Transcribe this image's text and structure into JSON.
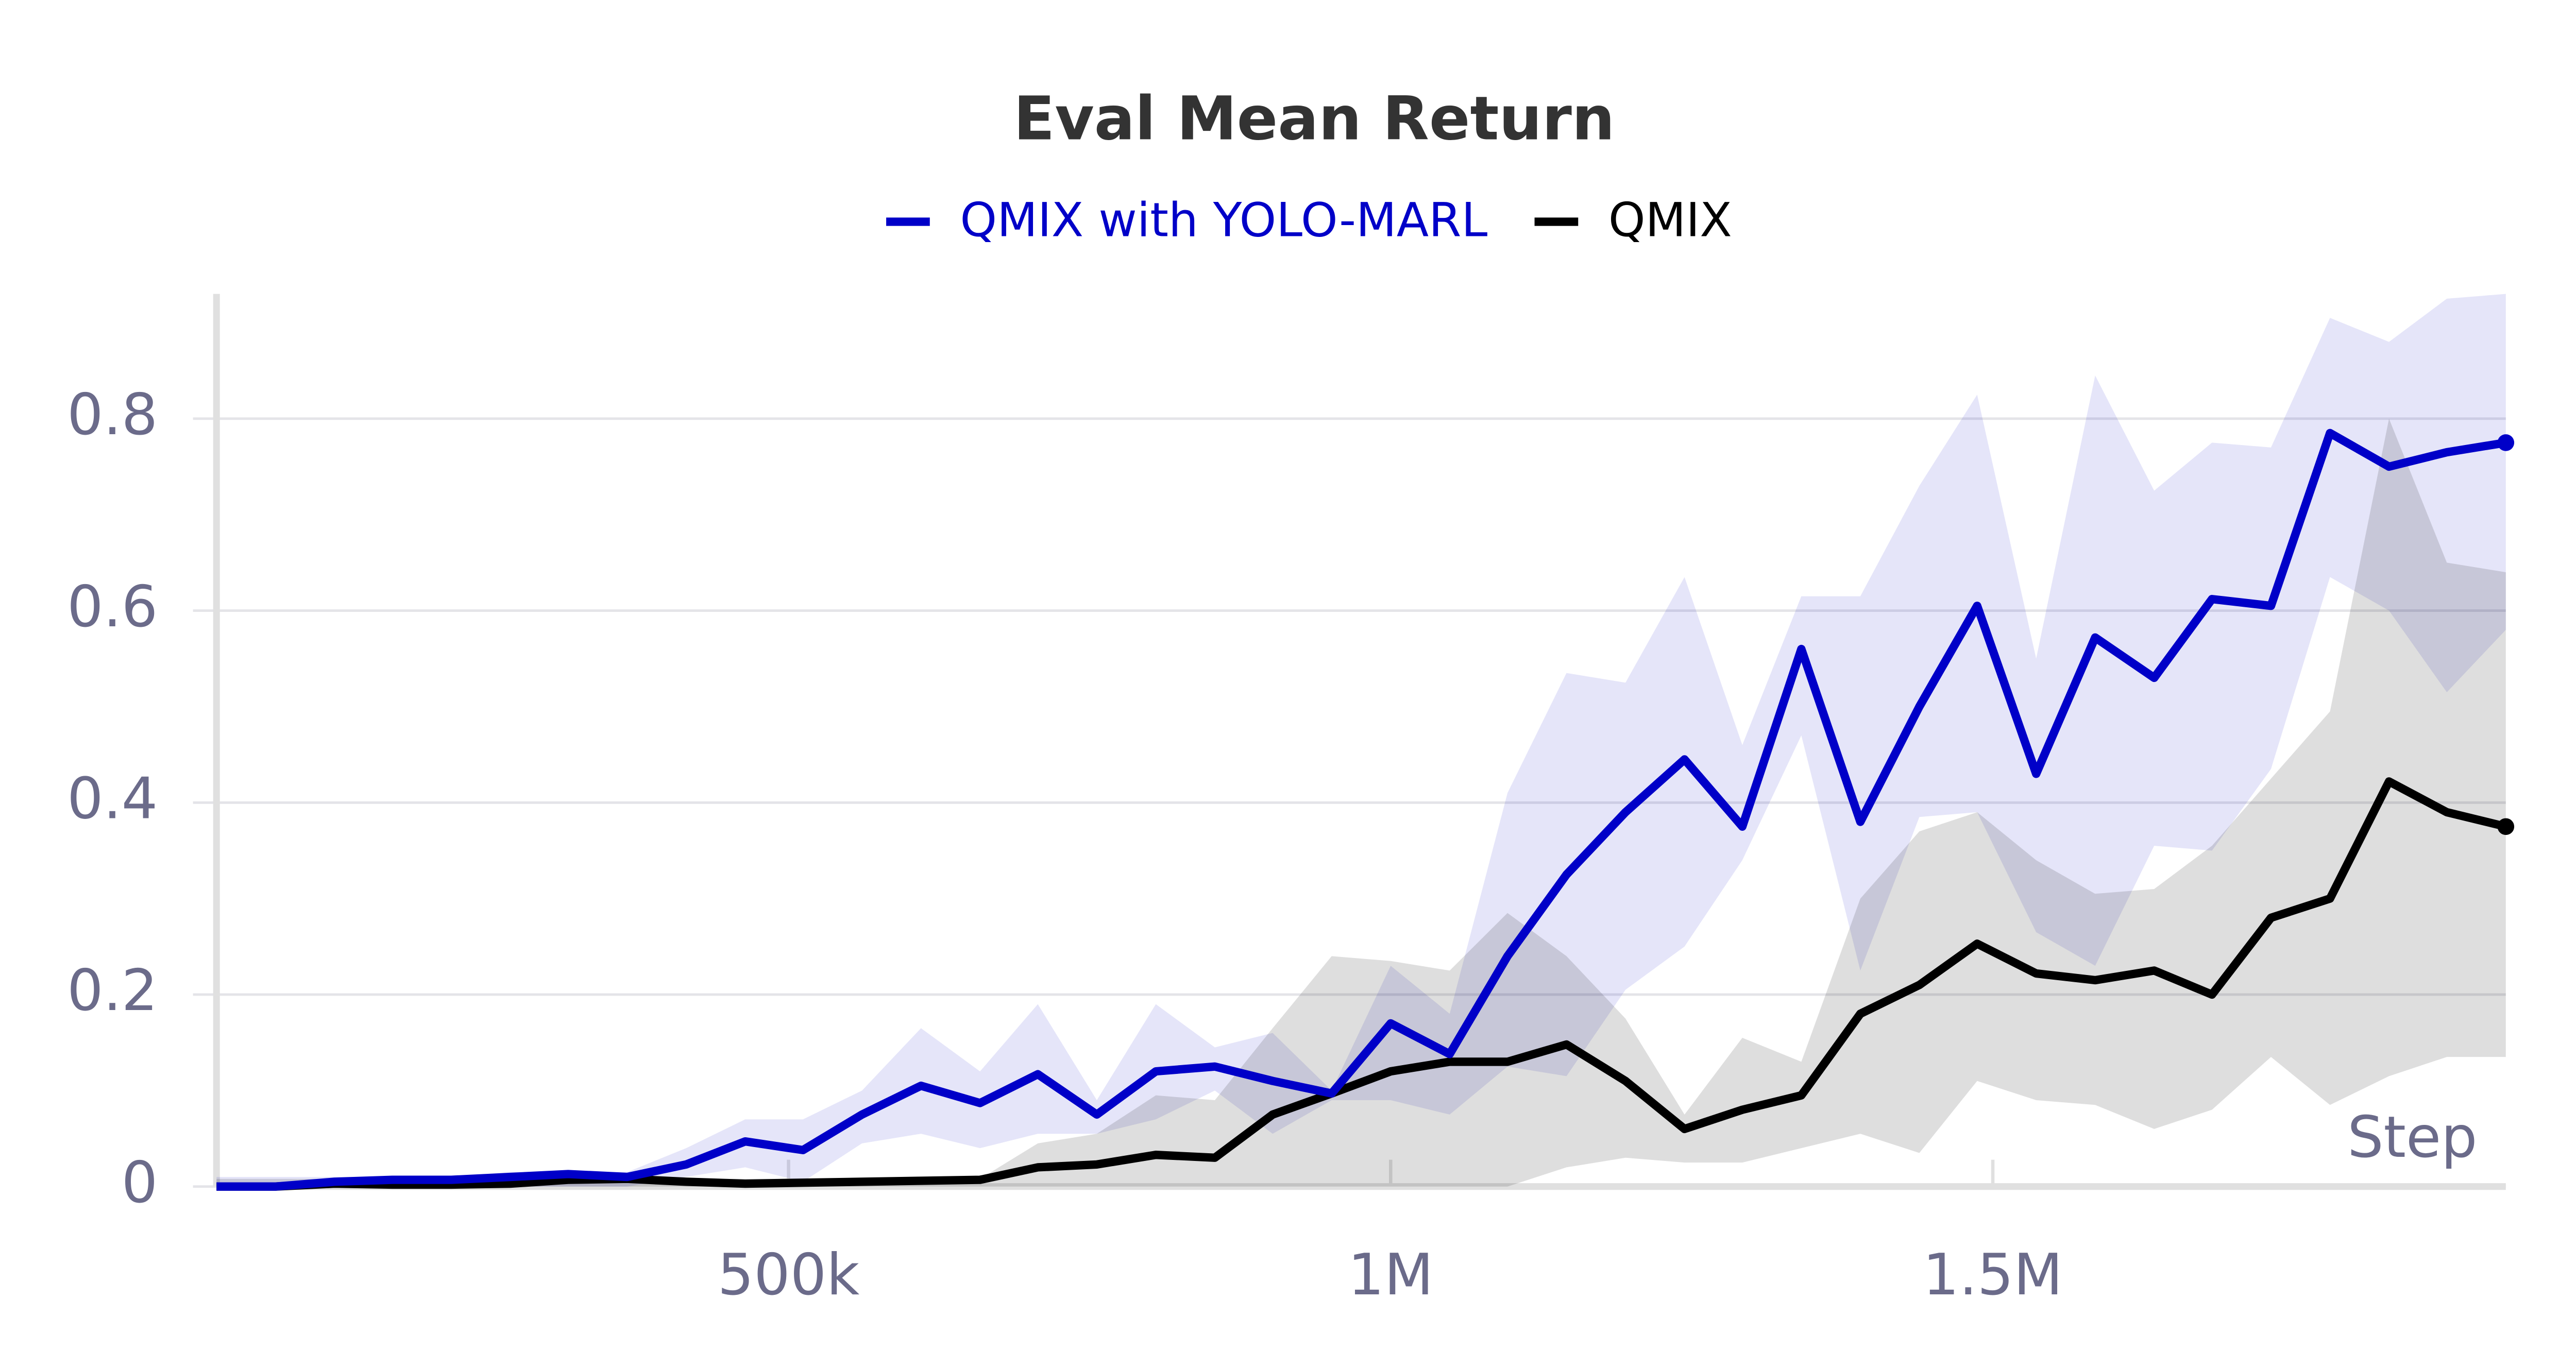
{
  "chart_data": {
    "type": "line",
    "title": "Eval Mean Return",
    "x_label": "Step",
    "x": [
      25000,
      74000,
      123000,
      171000,
      220000,
      269000,
      317000,
      366000,
      415000,
      464000,
      512000,
      561000,
      610000,
      659000,
      707000,
      756000,
      805000,
      854000,
      902000,
      951000,
      1000000,
      1049000,
      1097000,
      1146000,
      1195000,
      1244000,
      1292000,
      1341000,
      1390000,
      1439000,
      1487000,
      1536000,
      1585000,
      1634000,
      1682000,
      1731000,
      1780000,
      1829000,
      1877000,
      1926000
    ],
    "series": [
      {
        "name": "QMIX with YOLO-MARL",
        "color": "#0000c8",
        "values": [
          0,
          0,
          0.005,
          0.007,
          0.007,
          0.01,
          0.013,
          0.01,
          0.023,
          0.047,
          0.038,
          0.075,
          0.105,
          0.087,
          0.117,
          0.075,
          0.12,
          0.125,
          0.11,
          0.097,
          0.17,
          0.138,
          0.24,
          0.325,
          0.39,
          0.445,
          0.375,
          0.56,
          0.38,
          0.5,
          0.605,
          0.43,
          0.572,
          0.53,
          0.612,
          0.605,
          0.785,
          0.75,
          0.765,
          0.775
        ],
        "upper": [
          0.01,
          0.01,
          0.01,
          0.01,
          0.01,
          0.015,
          0.015,
          0.015,
          0.04,
          0.07,
          0.07,
          0.1,
          0.165,
          0.12,
          0.19,
          0.09,
          0.19,
          0.145,
          0.16,
          0.1,
          0.23,
          0.18,
          0.41,
          0.535,
          0.525,
          0.635,
          0.46,
          0.615,
          0.615,
          0.73,
          0.825,
          0.55,
          0.845,
          0.725,
          0.775,
          0.77,
          0.905,
          0.88,
          0.925,
          0.93
        ],
        "lower": [
          0,
          0,
          0,
          0,
          0,
          0,
          0,
          0,
          0.01,
          0.02,
          0.005,
          0.045,
          0.055,
          0.04,
          0.055,
          0.055,
          0.07,
          0.1,
          0.055,
          0.09,
          0.09,
          0.075,
          0.125,
          0.115,
          0.205,
          0.25,
          0.34,
          0.47,
          0.225,
          0.385,
          0.39,
          0.265,
          0.23,
          0.355,
          0.35,
          0.435,
          0.635,
          0.6,
          0.515,
          0.58
        ]
      },
      {
        "name": "QMIX",
        "color": "#000000",
        "values": [
          0,
          0,
          0.003,
          0.002,
          0.002,
          0.003,
          0.007,
          0.008,
          0.005,
          0.003,
          0.004,
          0.005,
          0.006,
          0.007,
          0.02,
          0.023,
          0.033,
          0.03,
          0.075,
          0.097,
          0.12,
          0.13,
          0.13,
          0.148,
          0.11,
          0.06,
          0.08,
          0.095,
          0.18,
          0.21,
          0.253,
          0.222,
          0.215,
          0.225,
          0.2,
          0.28,
          0.3,
          0.422,
          0.39,
          0.375
        ],
        "upper": [
          0.008,
          0.008,
          0.008,
          0.008,
          0.008,
          0.008,
          0.008,
          0.008,
          0.008,
          0.008,
          0.008,
          0.008,
          0.008,
          0.008,
          0.045,
          0.055,
          0.095,
          0.09,
          0.165,
          0.24,
          0.235,
          0.225,
          0.285,
          0.24,
          0.175,
          0.075,
          0.155,
          0.13,
          0.3,
          0.37,
          0.39,
          0.34,
          0.305,
          0.31,
          0.355,
          0.425,
          0.495,
          0.8,
          0.65,
          0.64
        ],
        "lower": [
          0,
          0,
          0,
          0,
          0,
          0,
          0,
          0,
          0,
          0,
          0,
          0,
          0,
          0,
          0,
          0,
          0,
          0,
          0,
          0,
          0,
          0,
          0,
          0.02,
          0.03,
          0.025,
          0.025,
          0.04,
          0.055,
          0.035,
          0.11,
          0.09,
          0.085,
          0.06,
          0.08,
          0.135,
          0.085,
          0.115,
          0.135,
          0.135
        ]
      }
    ],
    "xlim": [
      25000,
      1926000
    ],
    "ylim": [
      0,
      0.93
    ],
    "xticks": [
      {
        "value": 500000,
        "label": "500k"
      },
      {
        "value": 1000000,
        "label": "1M"
      },
      {
        "value": 1500000,
        "label": "1.5M"
      }
    ],
    "yticks": [
      0,
      0.2,
      0.4,
      0.6,
      0.8
    ],
    "grid": true,
    "legend": "top"
  }
}
